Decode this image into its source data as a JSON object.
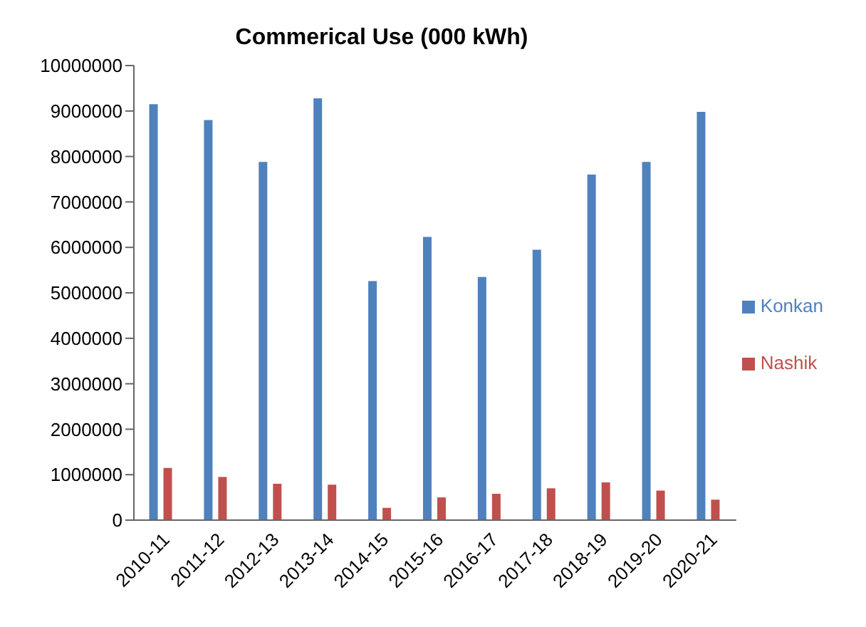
{
  "chart_data": {
    "type": "bar",
    "title": "Commerical Use (000 kWh)",
    "categories": [
      "2010-11",
      "2011-12",
      "2012-13",
      "2013-14",
      "2014-15",
      "2015-16",
      "2016-17",
      "2017-18",
      "2018-19",
      "2019-20",
      "2020-21"
    ],
    "series": [
      {
        "name": "Konkan",
        "color": "#4f81bd",
        "values": [
          9150000,
          8800000,
          7880000,
          9280000,
          5260000,
          6230000,
          5350000,
          5950000,
          7600000,
          7880000,
          8980000
        ]
      },
      {
        "name": "Nashik",
        "color": "#c0504d",
        "values": [
          1150000,
          950000,
          800000,
          780000,
          270000,
          500000,
          580000,
          700000,
          830000,
          650000,
          450000
        ]
      }
    ],
    "ylim": [
      0,
      10000000
    ],
    "yticks": [
      0,
      1000000,
      2000000,
      3000000,
      4000000,
      5000000,
      6000000,
      7000000,
      8000000,
      9000000,
      10000000
    ],
    "grid": false,
    "legend": "right"
  }
}
